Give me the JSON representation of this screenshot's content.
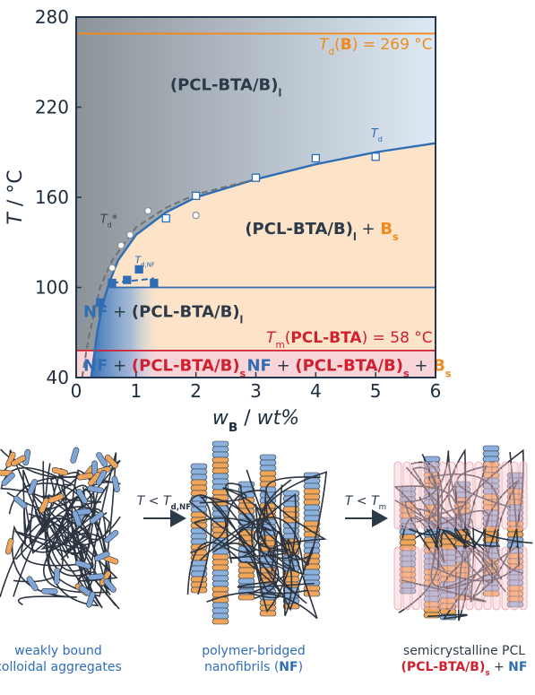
{
  "chart_data": {
    "type": "scatter",
    "xlabel": [
      {
        "t": "w",
        "c": "#1d2d3d",
        "i": true
      },
      {
        "t": "B",
        "c": "#1d2d3d",
        "sub": true,
        "b": true
      },
      {
        "t": " / ",
        "c": "#1d2d3d"
      },
      {
        "t": "wt%",
        "c": "#1d2d3d",
        "i": true
      }
    ],
    "ylabel": [
      {
        "t": "T",
        "c": "#1d2d3d",
        "i": true
      },
      {
        "t": " / °C",
        "c": "#1d2d3d"
      }
    ],
    "xlim": [
      0,
      6
    ],
    "ylim": [
      40,
      280
    ],
    "xticks": [
      0,
      1,
      2,
      3,
      4,
      5,
      6
    ],
    "yticks": [
      40,
      100,
      160,
      220,
      280
    ],
    "hlines": [
      {
        "value": 269,
        "color": "#f08a1c"
      },
      {
        "value": 100,
        "color": "#2f6db5"
      },
      {
        "value": 58,
        "color": "#d0212f"
      }
    ],
    "series": [
      {
        "kind": "line",
        "color": "#2f6db5",
        "label": [
          {
            "t": "T",
            "c": "#2f6db5",
            "i": true
          },
          {
            "t": "d",
            "c": "#2f6db5",
            "sub": true
          }
        ],
        "x": [
          0.25,
          0.35,
          0.45,
          0.55,
          0.7,
          1,
          1.5,
          2,
          3,
          4,
          5,
          6
        ],
        "values": [
          40,
          70,
          90,
          103,
          118,
          135,
          150,
          160,
          172,
          182,
          190,
          196
        ]
      },
      {
        "kind": "dashed",
        "color": "#6e7275",
        "label": [
          {
            "t": "T",
            "c": "#3c4146",
            "i": true
          },
          {
            "t": "d",
            "c": "#3c4146",
            "sub": true
          },
          {
            "t": "*",
            "c": "#3c4146"
          }
        ],
        "x": [
          0.1,
          0.2,
          0.4,
          0.6,
          1,
          1.5,
          2,
          3
        ],
        "values": [
          40,
          65,
          100,
          118,
          140,
          153,
          162,
          172
        ]
      },
      {
        "kind": "dashed",
        "color": "#2f6db5",
        "label": [
          {
            "t": "T",
            "c": "#2f6db5",
            "i": true
          },
          {
            "t": "d,NF",
            "c": "#2f6db5",
            "sub": true
          }
        ],
        "x": [
          0.6,
          1.3
        ],
        "values": [
          103,
          106
        ]
      },
      {
        "kind": "open-square",
        "color": "#2f6db5",
        "x": [
          1.5,
          2,
          3,
          4,
          5
        ],
        "values": [
          146,
          161,
          173,
          186,
          187
        ]
      },
      {
        "kind": "open-circle",
        "color": "#8a8f94",
        "x": [
          0.6,
          0.75,
          0.9,
          1.2,
          2
        ],
        "values": [
          113,
          128,
          135,
          151,
          148
        ]
      },
      {
        "kind": "filled-square",
        "color": "#2f6db5",
        "x": [
          0.4,
          0.6,
          0.85,
          1.05,
          1.3
        ],
        "values": [
          90,
          103,
          105,
          112,
          103
        ]
      }
    ],
    "annotations": [
      [
        {
          "t": "T",
          "c": "#f08a1c",
          "i": true
        },
        {
          "t": "d",
          "c": "#f08a1c",
          "sub": true
        },
        {
          "t": "(",
          "c": "#f08a1c"
        },
        {
          "t": "B",
          "c": "#f08a1c",
          "b": true
        },
        {
          "t": ") = 269 °C",
          "c": "#f08a1c"
        }
      ],
      [
        {
          "t": "(PCL-BTA/B)",
          "c": "#2d3a4a",
          "b": true
        },
        {
          "t": "l",
          "c": "#2d3a4a",
          "sub": true,
          "b": true
        }
      ],
      [
        {
          "t": "(PCL-BTA/B)",
          "c": "#2d3a4a",
          "b": true
        },
        {
          "t": "l",
          "c": "#2d3a4a",
          "sub": true,
          "b": true
        },
        {
          "t": " + ",
          "c": "#2d3a4a"
        },
        {
          "t": "B",
          "c": "#f08a1c",
          "b": true
        },
        {
          "t": "s",
          "c": "#f08a1c",
          "sub": true,
          "b": true
        }
      ],
      [
        {
          "t": "NF",
          "c": "#2f6db5",
          "b": true
        },
        {
          "t": " + ",
          "c": "#2d3a4a"
        },
        {
          "t": "(PCL-BTA/B)",
          "c": "#2d3a4a",
          "b": true
        },
        {
          "t": "l",
          "c": "#2d3a4a",
          "sub": true,
          "b": true
        }
      ],
      [
        {
          "t": "T",
          "c": "#d0212f",
          "i": true
        },
        {
          "t": "m",
          "c": "#d0212f",
          "sub": true
        },
        {
          "t": "(",
          "c": "#d0212f"
        },
        {
          "t": "PCL-BTA",
          "c": "#d0212f",
          "b": true
        },
        {
          "t": ") = 58 °C",
          "c": "#d0212f"
        }
      ],
      [
        {
          "t": "NF",
          "c": "#2f6db5",
          "b": true
        },
        {
          "t": " + ",
          "c": "#2d3a4a"
        },
        {
          "t": "(PCL-BTA/B)",
          "c": "#d0212f",
          "b": true
        },
        {
          "t": "s",
          "c": "#d0212f",
          "sub": true,
          "b": true
        }
      ],
      [
        {
          "t": "NF",
          "c": "#2f6db5",
          "b": true
        },
        {
          "t": " + ",
          "c": "#2d3a4a"
        },
        {
          "t": "(PCL-BTA/B)",
          "c": "#d0212f",
          "b": true
        },
        {
          "t": "s",
          "c": "#d0212f",
          "sub": true,
          "b": true
        },
        {
          "t": " + ",
          "c": "#2d3a4a"
        },
        {
          "t": "B",
          "c": "#f08a1c",
          "b": true
        },
        {
          "t": "s",
          "c": "#f08a1c",
          "sub": true,
          "b": true
        }
      ]
    ]
  },
  "schematic": {
    "panels": [
      {
        "caption": [
          [
            {
              "t": "weakly bound",
              "c": "#2f6db5"
            }
          ],
          [
            {
              "t": "colloidal aggregates",
              "c": "#2f6db5"
            }
          ]
        ]
      },
      {
        "caption": [
          [
            {
              "t": "polymer-bridged",
              "c": "#2f6db5"
            }
          ],
          [
            {
              "t": "nanofibrils (",
              "c": "#2f6db5"
            },
            {
              "t": "NF",
              "c": "#2f6db5",
              "b": true
            },
            {
              "t": ")",
              "c": "#2f6db5"
            }
          ]
        ]
      },
      {
        "caption": [
          [
            {
              "t": "semicrystalline PCL",
              "c": "#2d3a4a"
            }
          ],
          [
            {
              "t": "(PCL-BTA/B)",
              "c": "#d0212f",
              "b": true
            },
            {
              "t": "s",
              "c": "#d0212f",
              "sub": true,
              "b": true
            },
            {
              "t": " + ",
              "c": "#2d3a4a"
            },
            {
              "t": "NF",
              "c": "#2f6db5",
              "b": true
            }
          ]
        ]
      }
    ],
    "arrows": [
      {
        "label": [
          {
            "t": "T",
            "c": "#2d3a4a",
            "i": true
          },
          {
            "t": " < ",
            "c": "#2d3a4a"
          },
          {
            "t": "T",
            "c": "#2d3a4a",
            "i": true
          },
          {
            "t": "d,NF",
            "c": "#2d3a4a",
            "sub": true,
            "b": true
          }
        ]
      },
      {
        "label": [
          {
            "t": "T",
            "c": "#2d3a4a",
            "i": true
          },
          {
            "t": " < ",
            "c": "#2d3a4a"
          },
          {
            "t": "T",
            "c": "#2d3a4a",
            "i": true
          },
          {
            "t": "m",
            "c": "#2d3a4a",
            "sub": true
          }
        ]
      }
    ]
  }
}
